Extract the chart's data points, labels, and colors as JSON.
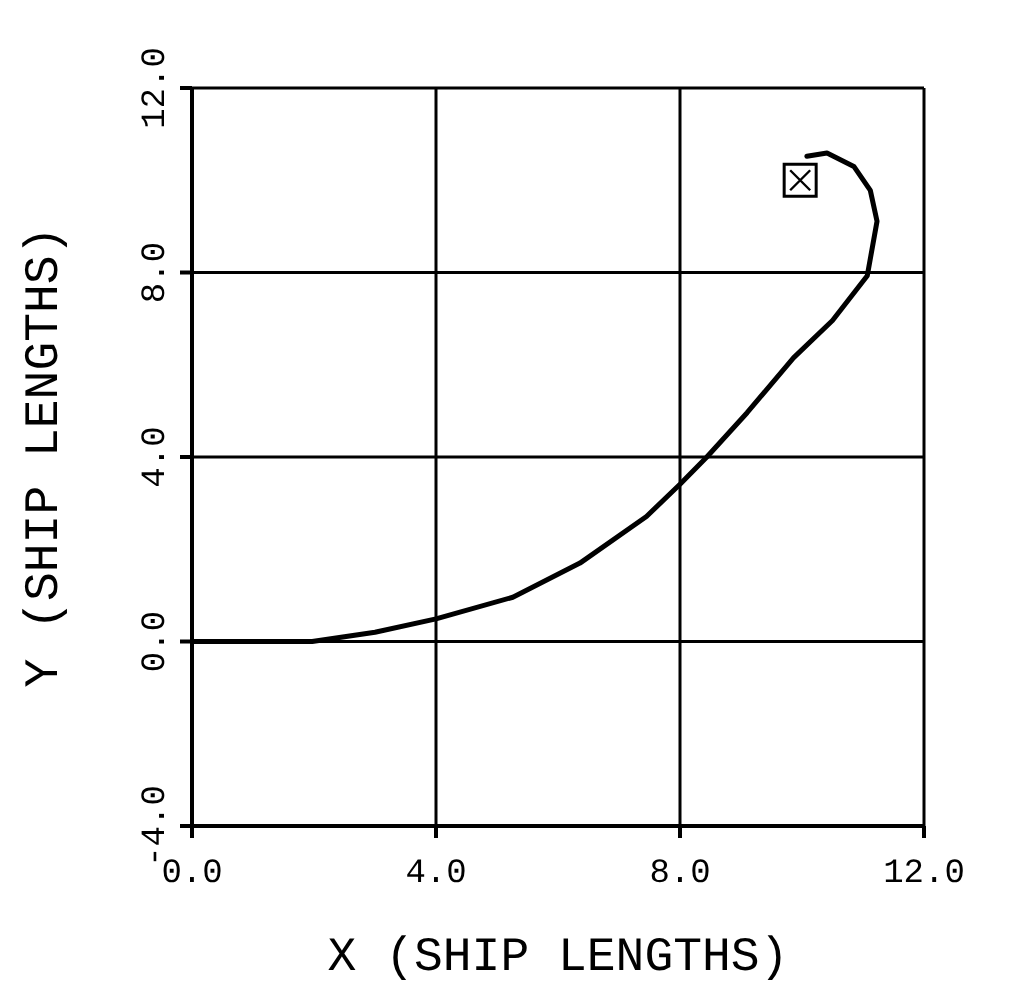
{
  "chart_data": {
    "type": "line",
    "xlabel": "X (SHIP LENGTHS)",
    "ylabel": "Y (SHIP LENGTHS)",
    "xlim": [
      0,
      12
    ],
    "ylim": [
      -4,
      12
    ],
    "xticks": [
      {
        "value": 0,
        "label": "0.0"
      },
      {
        "value": 4,
        "label": "4.0"
      },
      {
        "value": 8,
        "label": "8.0"
      },
      {
        "value": 12,
        "label": "12.0"
      }
    ],
    "yticks": [
      {
        "value": -4,
        "label": "-4.0"
      },
      {
        "value": 0,
        "label": "0.0"
      },
      {
        "value": 4,
        "label": "4.0"
      },
      {
        "value": 8,
        "label": "8.0"
      },
      {
        "value": 12,
        "label": "12.0"
      }
    ],
    "grid": true,
    "marker": "none",
    "line_style": "solid",
    "series": [
      {
        "color": "#000000",
        "x": [
          0,
          1,
          1.97,
          3,
          4,
          5.26,
          6.36,
          7.45,
          8,
          8.44,
          9.1,
          9.86,
          10.5,
          11.07,
          11.23,
          11.12,
          10.85,
          10.41,
          10.08
        ],
        "values": [
          0,
          0,
          0,
          0.2,
          0.49,
          0.96,
          1.7,
          2.71,
          3.41,
          4,
          4.96,
          6.15,
          6.96,
          7.93,
          9.11,
          9.78,
          10.3,
          10.59,
          10.52
        ]
      },
      {
        "type": "scatter",
        "marker": "square",
        "color": "#000000",
        "x": [
          9.97
        ],
        "values": [
          10
        ]
      }
    ]
  }
}
